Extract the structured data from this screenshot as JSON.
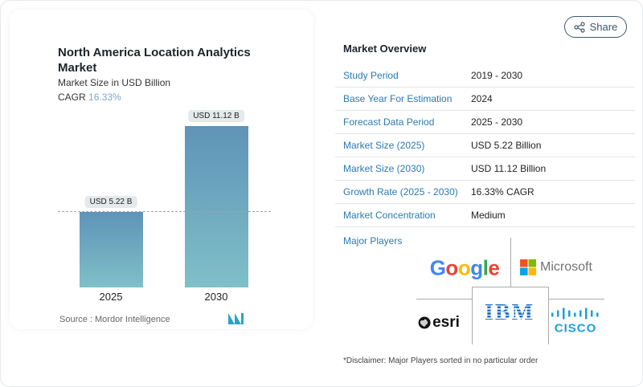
{
  "share_label": "Share",
  "chart_data": {
    "type": "bar",
    "title": "North America Location Analytics Market",
    "subtitle": "Market Size in USD Billion",
    "cagr_label": "CAGR",
    "cagr_value": "16.33%",
    "categories": [
      "2025",
      "2030"
    ],
    "values": [
      5.22,
      11.12
    ],
    "data_labels": [
      "USD 5.22 B",
      "USD 11.12 B"
    ],
    "source": "Source :  Mordor Intelligence",
    "colors": {
      "bar_top": "#5f93b8",
      "bar_bottom": "#7fc0c8",
      "cagr": "#7fa7c6"
    }
  },
  "overview": {
    "title": "Market Overview",
    "rows": [
      {
        "label": "Study Period",
        "value": "2019 - 2030"
      },
      {
        "label": "Base Year For Estimation",
        "value": "2024"
      },
      {
        "label": "Forecast Data Period",
        "value": "2025 - 2030"
      },
      {
        "label": "Market Size (2025)",
        "value": "USD 5.22 Billion"
      },
      {
        "label": "Market Size (2030)",
        "value": "USD 11.12 Billion"
      },
      {
        "label": "Growth Rate (2025 - 2030)",
        "value": "16.33% CAGR"
      },
      {
        "label": "Market Concentration",
        "value": "Medium"
      }
    ]
  },
  "players": {
    "title": "Major Players",
    "logos": [
      "Google",
      "Microsoft",
      "esri",
      "IBM",
      "cisco"
    ],
    "disclaimer": "*Disclaimer: Major Players sorted in no particular order"
  }
}
